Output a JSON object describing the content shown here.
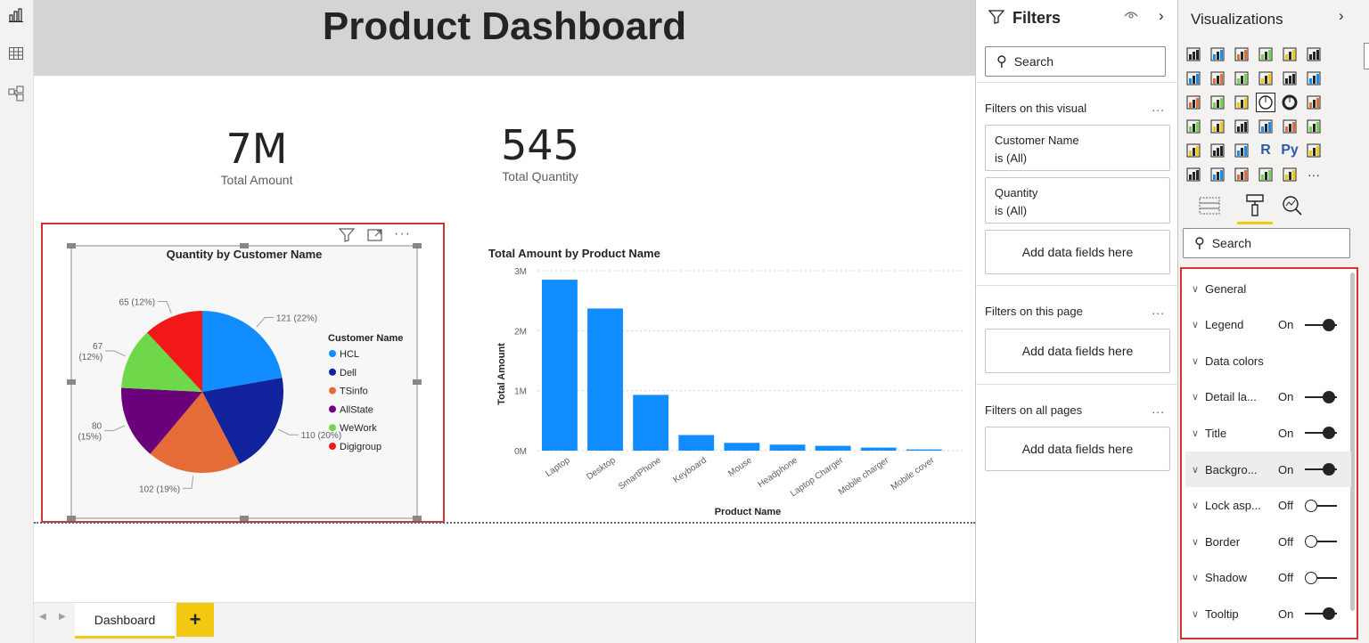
{
  "report": {
    "title": "Product Dashboard",
    "kpis": [
      {
        "value": "7M",
        "label": "Total Amount"
      },
      {
        "value": "545",
        "label": "Total Quantity"
      }
    ],
    "page_tabs": [
      "Dashboard"
    ],
    "add_tab": "+"
  },
  "left_rail": {
    "icons": [
      "report-view-icon",
      "data-view-icon",
      "model-view-icon"
    ]
  },
  "filters_pane": {
    "title": "Filters",
    "search_placeholder": "Search",
    "on_visual_label": "Filters on this visual",
    "visual_filters": [
      {
        "field": "Customer Name",
        "state": "is (All)"
      },
      {
        "field": "Quantity",
        "state": "is (All)"
      }
    ],
    "add_fields": "Add data fields here",
    "on_page_label": "Filters on this page",
    "on_all_pages_label": "Filters on all pages",
    "more": "..."
  },
  "viz_pane": {
    "title": "Visualizations",
    "search_placeholder": "Search",
    "visual_icons": [
      "stacked-bar",
      "stacked-column",
      "clustered-bar",
      "clustered-column",
      "100-bar",
      "100-column",
      "line",
      "area",
      "stacked-area",
      "line-column",
      "line-clustered",
      "ribbon",
      "waterfall",
      "funnel",
      "scatter",
      "pie",
      "donut",
      "treemap",
      "map",
      "filled-map",
      "gauge",
      "card",
      "multi-row-card",
      "kpi",
      "slicer",
      "table",
      "matrix",
      "r-visual",
      "python-visual",
      "key-influencers",
      "decomposition-tree",
      "qa",
      "smart-narrative",
      "paginated",
      "power-apps",
      "more"
    ],
    "format_tabs": [
      "fields",
      "format",
      "analytics"
    ],
    "properties": [
      {
        "label": "General",
        "value": "",
        "toggle": null
      },
      {
        "label": "Legend",
        "value": "On",
        "toggle": true
      },
      {
        "label": "Data colors",
        "value": "",
        "toggle": null
      },
      {
        "label": "Detail la...",
        "value": "On",
        "toggle": true
      },
      {
        "label": "Title",
        "value": "On",
        "toggle": true
      },
      {
        "label": "Backgro...",
        "value": "On",
        "toggle": true
      },
      {
        "label": "Lock asp...",
        "value": "Off",
        "toggle": false
      },
      {
        "label": "Border",
        "value": "Off",
        "toggle": false
      },
      {
        "label": "Shadow",
        "value": "Off",
        "toggle": false
      },
      {
        "label": "Tooltip",
        "value": "On",
        "toggle": true
      }
    ]
  },
  "chart_data": [
    {
      "type": "pie",
      "title": "Quantity by Customer Name",
      "legend_title": "Customer Name",
      "legend_position": "right",
      "slices": [
        {
          "name": "HCL",
          "value": 121,
          "label": "121 (22%)",
          "color": "#118dff"
        },
        {
          "name": "Dell",
          "value": 110,
          "label": "110 (20%)",
          "color": "#12239e"
        },
        {
          "name": "TSinfo",
          "value": 102,
          "label": "102 (19%)",
          "color": "#e66c37"
        },
        {
          "name": "AllState",
          "value": 80,
          "label": "80 (15%)",
          "color": "#6b007b"
        },
        {
          "name": "WeWork",
          "value": 67,
          "label": "67 (12%)",
          "color": "#6fd84a"
        },
        {
          "name": "Digigroup",
          "value": 65,
          "label": "65 (12%)",
          "color": "#f21818"
        }
      ]
    },
    {
      "type": "bar",
      "title": "Total Amount by Product Name",
      "xlabel": "Product Name",
      "ylabel": "Total Amount",
      "y_ticks": [
        "3M",
        "2M",
        "1M",
        "0M"
      ],
      "ylim": [
        0,
        3000000
      ],
      "grid": true,
      "color": "#118dff",
      "categories": [
        "Laptop",
        "Desktop",
        "SmartPhone",
        "Keyboard",
        "Mouse",
        "Headphone",
        "Laptop Charger",
        "Mobile charger",
        "Mobile cover"
      ],
      "values": [
        2850000,
        2370000,
        930000,
        260000,
        130000,
        100000,
        80000,
        50000,
        20000
      ]
    }
  ]
}
